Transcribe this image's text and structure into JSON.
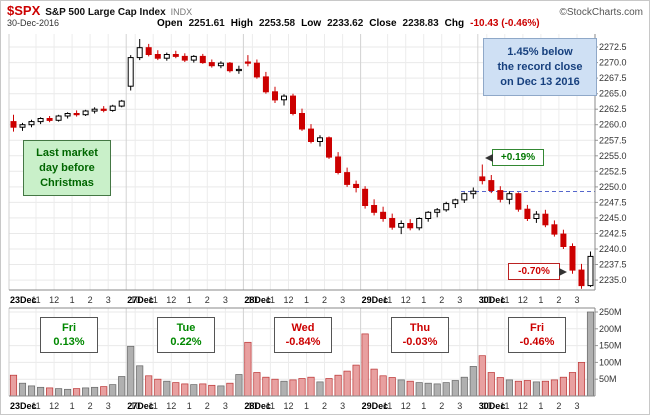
{
  "header": {
    "symbol": "$SPX",
    "name": "S&P 500 Large Cap Index",
    "exchange": "INDX",
    "copyright": "©StockCharts.com",
    "date": "30-Dec-2016",
    "quote": {
      "open_label": "Open",
      "open": "2251.61",
      "high_label": "High",
      "high": "2253.58",
      "low_label": "Low",
      "low": "2233.62",
      "close_label": "Close",
      "close": "2238.83",
      "chg_label": "Chg",
      "chg": "-10.43 (-0.46%)"
    }
  },
  "annotations": {
    "left_note_lines": [
      "Last market",
      "day before",
      "Christmas"
    ],
    "right_note_lines": [
      "1.45% below",
      "the record close",
      "on Dec 13 2016"
    ],
    "high_label": "+0.19%",
    "low_label": "-0.70%"
  },
  "day_summary": [
    {
      "day": "Fri",
      "pct": "0.13%",
      "dir": "up"
    },
    {
      "day": "Tue",
      "pct": "0.22%",
      "dir": "up"
    },
    {
      "day": "Wed",
      "pct": "-0.84%",
      "dir": "down"
    },
    {
      "day": "Thu",
      "pct": "-0.03%",
      "dir": "down"
    },
    {
      "day": "Fri",
      "pct": "-0.46%",
      "dir": "down"
    }
  ],
  "colors": {
    "down": "#cc0000",
    "up_outline": "#000000",
    "vol_down_fill": "#e8a0a0",
    "vol_up_fill": "#b0b0b0",
    "dashed_line": "#5566cc"
  },
  "chart_data": {
    "type": "candlestick",
    "title": "$SPX S&P 500 Large Cap Index (INDX) 30-minute candlesticks with volume, Dec 23 - Dec 30 2016",
    "xlabel": "",
    "ylabel": "",
    "ylim": [
      2233.4,
      2274.6
    ],
    "y_ticks": [
      2235.0,
      2237.5,
      2240.0,
      2242.5,
      2245.0,
      2247.5,
      2250.0,
      2252.5,
      2255.0,
      2257.5,
      2260.0,
      2262.5,
      2265.0,
      2267.5,
      2270.0,
      2272.5
    ],
    "volume_ticks_m": [
      50,
      100,
      150,
      200,
      250
    ],
    "volume_max_m": 262,
    "prev_close_line": 2249.26,
    "bar_format": [
      "open",
      "high",
      "low",
      "close",
      "volume_m"
    ],
    "days": [
      {
        "date": "23Dec",
        "hours": [
          [
            "11",
            3
          ],
          [
            "12",
            5
          ],
          [
            "1",
            7
          ],
          [
            "2",
            9
          ],
          [
            "3",
            11
          ]
        ],
        "bars": [
          [
            2260.5,
            2261.6,
            2258.9,
            2259.6,
            62
          ],
          [
            2259.6,
            2260.3,
            2259.0,
            2260.0,
            38
          ],
          [
            2260.0,
            2260.8,
            2259.6,
            2260.5,
            30
          ],
          [
            2260.5,
            2261.2,
            2260.1,
            2261.0,
            26
          ],
          [
            2261.0,
            2261.4,
            2260.4,
            2260.7,
            24
          ],
          [
            2260.7,
            2261.6,
            2260.5,
            2261.4,
            22
          ],
          [
            2261.4,
            2262.0,
            2261.0,
            2261.8,
            20
          ],
          [
            2261.8,
            2262.3,
            2261.3,
            2261.6,
            22
          ],
          [
            2261.6,
            2262.4,
            2261.4,
            2262.2,
            24
          ],
          [
            2262.2,
            2262.8,
            2261.8,
            2262.5,
            26
          ],
          [
            2262.5,
            2263.0,
            2262.0,
            2262.3,
            28
          ],
          [
            2262.3,
            2263.2,
            2262.1,
            2263.0,
            34
          ],
          [
            2263.0,
            2264.0,
            2262.8,
            2263.8,
            58
          ]
        ]
      },
      {
        "date": "27Dec",
        "hours": [
          [
            "10",
            1
          ],
          [
            "11",
            3
          ],
          [
            "12",
            5
          ],
          [
            "1",
            7
          ],
          [
            "2",
            9
          ],
          [
            "3",
            11
          ]
        ],
        "bars": [
          [
            2266.2,
            2271.2,
            2265.5,
            2270.8,
            148
          ],
          [
            2270.8,
            2273.8,
            2270.4,
            2272.4,
            90
          ],
          [
            2272.4,
            2273.0,
            2271.0,
            2271.3,
            60
          ],
          [
            2271.3,
            2272.0,
            2270.4,
            2270.7,
            50
          ],
          [
            2270.7,
            2271.6,
            2270.3,
            2271.3,
            44
          ],
          [
            2271.3,
            2271.9,
            2270.7,
            2271.0,
            40
          ],
          [
            2271.0,
            2271.5,
            2270.1,
            2270.4,
            36
          ],
          [
            2270.4,
            2271.2,
            2270.0,
            2271.0,
            34
          ],
          [
            2271.0,
            2271.4,
            2269.8,
            2270.0,
            36
          ],
          [
            2270.0,
            2270.5,
            2269.2,
            2269.5,
            32
          ],
          [
            2269.5,
            2270.2,
            2269.1,
            2269.9,
            30
          ],
          [
            2269.9,
            2270.1,
            2268.4,
            2268.7,
            38
          ],
          [
            2268.7,
            2269.5,
            2268.2,
            2268.9,
            64
          ]
        ]
      },
      {
        "date": "28Dec",
        "hours": [
          [
            "10",
            1
          ],
          [
            "11",
            3
          ],
          [
            "12",
            5
          ],
          [
            "1",
            7
          ],
          [
            "2",
            9
          ],
          [
            "3",
            11
          ]
        ],
        "bars": [
          [
            2270.1,
            2271.2,
            2269.4,
            2269.9,
            160
          ],
          [
            2269.9,
            2270.5,
            2267.4,
            2267.7,
            70
          ],
          [
            2267.7,
            2268.5,
            2265.0,
            2265.3,
            56
          ],
          [
            2265.3,
            2266.1,
            2263.5,
            2264.0,
            50
          ],
          [
            2264.0,
            2264.9,
            2263.1,
            2264.6,
            44
          ],
          [
            2264.6,
            2265.0,
            2261.5,
            2261.8,
            48
          ],
          [
            2261.8,
            2262.6,
            2259.0,
            2259.3,
            52
          ],
          [
            2259.3,
            2260.1,
            2257.0,
            2257.3,
            56
          ],
          [
            2257.3,
            2258.3,
            2256.5,
            2257.9,
            42
          ],
          [
            2257.9,
            2258.1,
            2254.5,
            2254.8,
            52
          ],
          [
            2254.8,
            2255.6,
            2252.0,
            2252.3,
            62
          ],
          [
            2252.3,
            2253.1,
            2250.0,
            2250.4,
            74
          ],
          [
            2250.4,
            2251.0,
            2249.1,
            2249.9,
            92
          ]
        ]
      },
      {
        "date": "29Dec",
        "hours": [
          [
            "11",
            3
          ],
          [
            "12",
            5
          ],
          [
            "1",
            7
          ],
          [
            "2",
            9
          ],
          [
            "3",
            11
          ]
        ],
        "bars": [
          [
            2249.6,
            2250.1,
            2246.5,
            2247.0,
            185
          ],
          [
            2247.0,
            2248.0,
            2245.4,
            2245.9,
            80
          ],
          [
            2245.9,
            2246.8,
            2244.4,
            2244.9,
            60
          ],
          [
            2244.9,
            2245.7,
            2243.1,
            2243.5,
            55
          ],
          [
            2243.5,
            2244.6,
            2242.4,
            2244.1,
            48
          ],
          [
            2244.1,
            2244.8,
            2243.0,
            2243.4,
            44
          ],
          [
            2243.4,
            2245.1,
            2243.0,
            2244.9,
            40
          ],
          [
            2244.9,
            2246.1,
            2244.4,
            2245.9,
            38
          ],
          [
            2245.9,
            2246.6,
            2245.1,
            2246.3,
            36
          ],
          [
            2246.3,
            2247.6,
            2246.0,
            2247.3,
            40
          ],
          [
            2247.3,
            2248.1,
            2246.6,
            2247.9,
            46
          ],
          [
            2247.9,
            2249.1,
            2247.4,
            2248.9,
            56
          ],
          [
            2248.9,
            2249.9,
            2248.1,
            2249.3,
            88
          ]
        ]
      },
      {
        "date": "30Dec",
        "hours": [
          [
            "10",
            1
          ],
          [
            "11",
            3
          ],
          [
            "12",
            5
          ],
          [
            "1",
            7
          ],
          [
            "2",
            9
          ],
          [
            "3",
            11
          ]
        ],
        "bars": [
          [
            2251.6,
            2253.6,
            2250.4,
            2251.0,
            120
          ],
          [
            2251.0,
            2251.9,
            2249.0,
            2249.4,
            70
          ],
          [
            2249.4,
            2250.1,
            2247.5,
            2248.0,
            55
          ],
          [
            2248.0,
            2249.3,
            2247.2,
            2248.9,
            48
          ],
          [
            2248.9,
            2249.1,
            2246.0,
            2246.4,
            44
          ],
          [
            2246.4,
            2247.1,
            2244.5,
            2244.9,
            46
          ],
          [
            2244.9,
            2246.1,
            2244.2,
            2245.6,
            42
          ],
          [
            2245.6,
            2246.3,
            2243.5,
            2243.9,
            44
          ],
          [
            2243.9,
            2244.6,
            2242.0,
            2242.4,
            48
          ],
          [
            2242.4,
            2243.1,
            2240.0,
            2240.4,
            56
          ],
          [
            2240.4,
            2240.9,
            2236.0,
            2236.6,
            70
          ],
          [
            2236.6,
            2237.6,
            2233.6,
            2234.1,
            100
          ],
          [
            2234.1,
            2239.6,
            2233.9,
            2238.8,
            250
          ]
        ]
      }
    ]
  }
}
